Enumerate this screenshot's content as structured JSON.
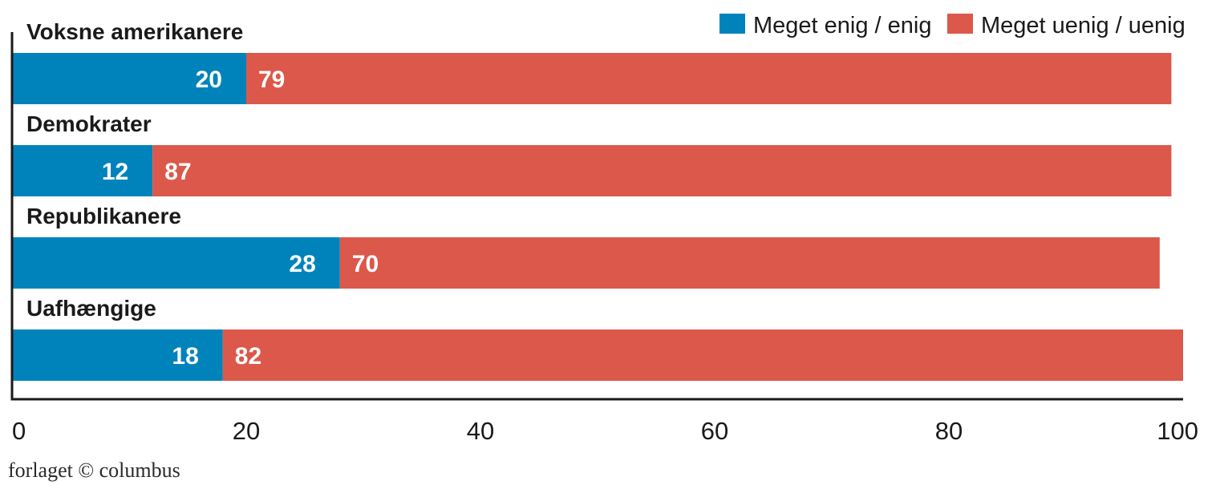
{
  "chart_data": {
    "type": "bar",
    "orientation": "horizontal",
    "stacked": true,
    "categories": [
      "Voksne amerikanere",
      "Demokrater",
      "Republikanere",
      "Uafhængige"
    ],
    "series": [
      {
        "name": "Meget enig / enig",
        "color": "#0083bb",
        "values": [
          20,
          12,
          28,
          18
        ]
      },
      {
        "name": "Meget uenig / uenig",
        "color": "#dc584a",
        "values": [
          79,
          87,
          70,
          82
        ]
      }
    ],
    "xlim": [
      0,
      100
    ],
    "xticks": [
      "0",
      "20",
      "40",
      "60",
      "80",
      "100"
    ],
    "grid": false,
    "legend_position": "top-right",
    "title": "",
    "xlabel": "",
    "ylabel": ""
  },
  "source": "forlaget © columbus"
}
